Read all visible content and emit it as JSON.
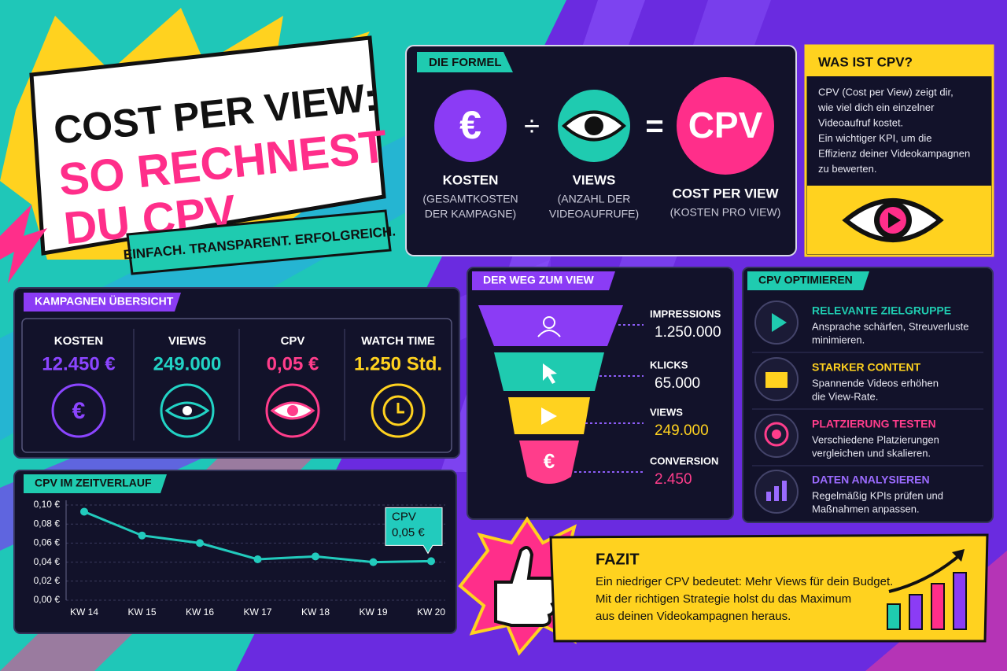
{
  "header": {
    "title_lines": [
      "COST PER VIEW:",
      "SO RECHNEST",
      "DU CPV"
    ],
    "tagline": "EINFACH. TRANSPARENT. ERFOLGREICH."
  },
  "formula": {
    "heading": "DIE FORMEL",
    "divide": "÷",
    "equals": "=",
    "items": [
      {
        "symbol": "€",
        "label": "KOSTEN",
        "note": [
          "(GESAMTKOSTEN",
          "DER KAMPAGNE)"
        ]
      },
      {
        "label": "VIEWS",
        "note": [
          "(ANZAHL DER",
          "VIDEOAUFRUFE)"
        ]
      },
      {
        "symbol": "CPV",
        "label": "COST PER VIEW",
        "note": [
          "(KOSTEN PRO VIEW)"
        ]
      }
    ]
  },
  "what_is": {
    "heading": "WAS IST CPV?",
    "text": [
      "CPV (Cost per View) zeigt dir,",
      "wie viel dich ein einzelner",
      "Videoaufruf kostet.",
      "Ein wichtiger KPI, um die",
      "Effizienz deiner Videokampagnen",
      "zu bewerten."
    ]
  },
  "overview": {
    "heading": "KAMPAGNEN ÜBERSICHT",
    "kpis": [
      {
        "label": "KOSTEN",
        "value": "12.450 €",
        "icon": "€"
      },
      {
        "label": "VIEWS",
        "value": "249.000"
      },
      {
        "label": "CPV",
        "value": "0,05 €"
      },
      {
        "label": "WATCH TIME",
        "value": "1.250 Std."
      }
    ]
  },
  "funnel": {
    "heading": "DER WEG ZUM VIEW",
    "stages": [
      {
        "label": "IMPRESSIONS",
        "value": "1.250.000"
      },
      {
        "label": "KLICKS",
        "value": "65.000"
      },
      {
        "label": "VIEWS",
        "value": "249.000"
      },
      {
        "label": "CONVERSION",
        "value": "2.450",
        "icon": "€"
      }
    ]
  },
  "optimize": {
    "heading": "CPV OPTIMIEREN",
    "tips": [
      {
        "title": "RELEVANTE ZIELGRUPPE",
        "text": [
          "Ansprache schärfen, Streuverluste",
          "minimieren."
        ]
      },
      {
        "title": "STARKER CONTENT",
        "text": [
          "Spannende Videos erhöhen",
          "die View-Rate."
        ]
      },
      {
        "title": "PLATZIERUNG TESTEN",
        "text": [
          "Verschiedene Platzierungen",
          "vergleichen und skalieren."
        ]
      },
      {
        "title": "DATEN ANALYSIEREN",
        "text": [
          "Regelmäßig KPIs prüfen und",
          "Maßnahmen anpassen."
        ]
      }
    ]
  },
  "fazit": {
    "heading": "FAZIT",
    "text": [
      "Ein niedriger CPV bedeutet: Mehr Views für dein Budget.",
      "Mit der richtigen Strategie holst du das Maximum",
      "aus deinen Videokampagnen heraus."
    ]
  },
  "chart_data": {
    "type": "line",
    "title": "CPV IM ZEITVERLAUF",
    "categories": [
      "KW 14",
      "KW 15",
      "KW 16",
      "KW 17",
      "KW 18",
      "KW 19",
      "KW 20"
    ],
    "values": [
      0.093,
      0.068,
      0.06,
      0.043,
      0.046,
      0.04,
      0.041
    ],
    "color": "#22cbbd",
    "ylim": [
      0,
      0.1
    ],
    "yticks": [
      {
        "value": 0,
        "label": "0,00 €"
      },
      {
        "value": 0.02,
        "label": "0,02 €"
      },
      {
        "value": 0.04,
        "label": "0,04 €"
      },
      {
        "value": 0.06,
        "label": "0,06 €"
      },
      {
        "value": 0.08,
        "label": "0,08 €"
      },
      {
        "value": 0.1,
        "label": "0,10 €"
      }
    ],
    "grid": true,
    "annotation": [
      "CPV",
      "0,05 €"
    ]
  }
}
